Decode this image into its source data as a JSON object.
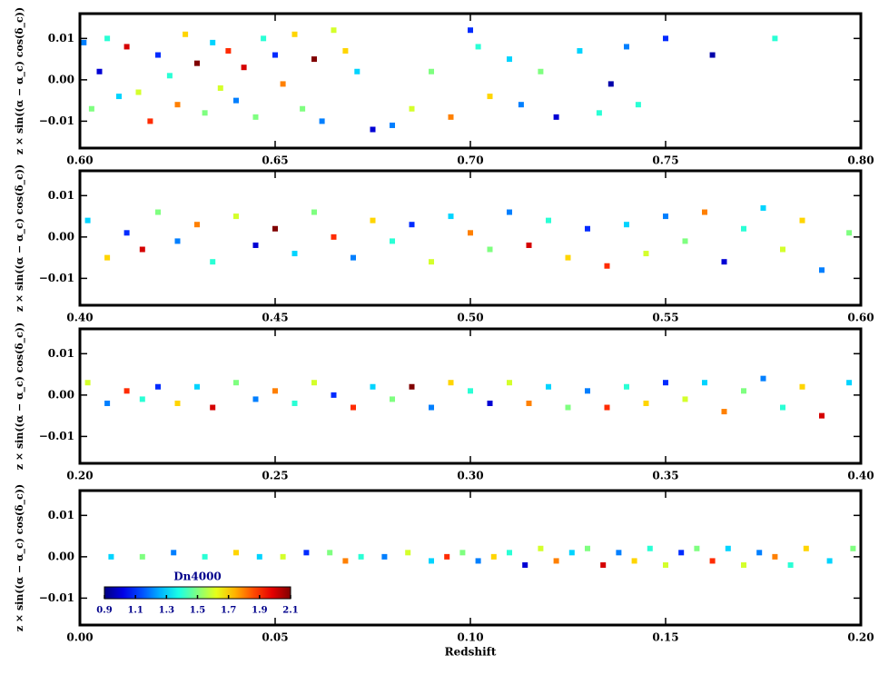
{
  "chart_data": [
    {
      "type": "scatter",
      "ylabel": "z × sin((α − α_c) cos(δ_c))",
      "colormap": "jet",
      "xlim": [
        0.6,
        0.8
      ],
      "xticks": [
        {
          "value": 0.6,
          "label": "0.60"
        },
        {
          "value": 0.65,
          "label": "0.65"
        },
        {
          "value": 0.7,
          "label": "0.70"
        },
        {
          "value": 0.75,
          "label": "0.75"
        },
        {
          "value": 0.8,
          "label": "0.80"
        }
      ],
      "ylim": [
        -0.0165,
        0.016
      ],
      "yticks": [
        {
          "value": -0.01,
          "label": "−0.01"
        },
        {
          "value": 0,
          "label": "0.00"
        },
        {
          "value": 0.01,
          "label": "0.01"
        }
      ],
      "series": [
        {
          "x": [
            0.601,
            0.603,
            0.605,
            0.607,
            0.61,
            0.612,
            0.615,
            0.618,
            0.62,
            0.623,
            0.625,
            0.627,
            0.63,
            0.632,
            0.634,
            0.636,
            0.638,
            0.64,
            0.642,
            0.645,
            0.647,
            0.65,
            0.652,
            0.655,
            0.657,
            0.66,
            0.662,
            0.665,
            0.668,
            0.671,
            0.675,
            0.68,
            0.685,
            0.69,
            0.695,
            0.7,
            0.702,
            0.705,
            0.71,
            0.713,
            0.718,
            0.722,
            0.728,
            0.733,
            0.736,
            0.74,
            0.743,
            0.75,
            0.762,
            0.778
          ],
          "y": [
            0.009,
            -0.007,
            0.002,
            0.01,
            -0.004,
            0.008,
            -0.003,
            -0.01,
            0.006,
            0.001,
            -0.006,
            0.011,
            0.004,
            -0.008,
            0.009,
            -0.002,
            0.007,
            -0.005,
            0.003,
            -0.009,
            0.01,
            0.006,
            -0.001,
            0.011,
            -0.007,
            0.005,
            -0.01,
            0.012,
            0.007,
            0.002,
            -0.012,
            -0.011,
            -0.007,
            0.002,
            -0.009,
            0.012,
            0.008,
            -0.004,
            0.005,
            -0.006,
            0.002,
            -0.009,
            0.007,
            -0.008,
            -0.001,
            0.008,
            -0.006,
            0.01,
            0.006,
            0.01
          ],
          "c": [
            1.2,
            1.5,
            1.0,
            1.4,
            1.3,
            2.0,
            1.6,
            1.9,
            1.1,
            1.4,
            1.8,
            1.7,
            2.1,
            1.5,
            1.3,
            1.6,
            1.9,
            1.2,
            2.0,
            1.5,
            1.4,
            1.1,
            1.8,
            1.7,
            1.5,
            2.1,
            1.2,
            1.6,
            1.7,
            1.3,
            1.0,
            1.2,
            1.6,
            1.5,
            1.8,
            1.1,
            1.4,
            1.7,
            1.3,
            1.2,
            1.5,
            1.0,
            1.3,
            1.4,
            0.95,
            1.2,
            1.4,
            1.1,
            0.95,
            1.4
          ]
        }
      ]
    },
    {
      "type": "scatter",
      "ylabel": "z × sin((α − α_c) cos(δ_c))",
      "colormap": "jet",
      "xlim": [
        0.4,
        0.6
      ],
      "xticks": [
        {
          "value": 0.4,
          "label": "0.40"
        },
        {
          "value": 0.45,
          "label": "0.45"
        },
        {
          "value": 0.5,
          "label": "0.50"
        },
        {
          "value": 0.55,
          "label": "0.55"
        },
        {
          "value": 0.6,
          "label": "0.60"
        }
      ],
      "ylim": [
        -0.0165,
        0.016
      ],
      "yticks": [
        {
          "value": -0.01,
          "label": "−0.01"
        },
        {
          "value": 0,
          "label": "0.00"
        },
        {
          "value": 0.01,
          "label": "0.01"
        }
      ],
      "series": [
        {
          "x": [
            0.402,
            0.407,
            0.412,
            0.416,
            0.42,
            0.425,
            0.43,
            0.434,
            0.44,
            0.445,
            0.45,
            0.455,
            0.46,
            0.465,
            0.47,
            0.475,
            0.48,
            0.485,
            0.49,
            0.495,
            0.5,
            0.505,
            0.51,
            0.515,
            0.52,
            0.525,
            0.53,
            0.535,
            0.54,
            0.545,
            0.55,
            0.555,
            0.56,
            0.565,
            0.57,
            0.575,
            0.58,
            0.585,
            0.59,
            0.597
          ],
          "y": [
            0.004,
            -0.005,
            0.001,
            -0.003,
            0.006,
            -0.001,
            0.003,
            -0.006,
            0.005,
            -0.002,
            0.002,
            -0.004,
            0.006,
            0.0,
            -0.005,
            0.004,
            -0.001,
            0.003,
            -0.006,
            0.005,
            0.001,
            -0.003,
            0.006,
            -0.002,
            0.004,
            -0.005,
            0.002,
            -0.007,
            0.003,
            -0.004,
            0.005,
            -0.001,
            0.006,
            -0.006,
            0.002,
            0.007,
            -0.003,
            0.004,
            -0.008,
            0.001
          ],
          "c": [
            1.3,
            1.7,
            1.1,
            2.0,
            1.5,
            1.2,
            1.8,
            1.4,
            1.6,
            1.0,
            2.1,
            1.3,
            1.5,
            1.9,
            1.2,
            1.7,
            1.4,
            1.1,
            1.6,
            1.3,
            1.8,
            1.5,
            1.2,
            2.0,
            1.4,
            1.7,
            1.1,
            1.9,
            1.3,
            1.6,
            1.2,
            1.5,
            1.8,
            1.0,
            1.4,
            1.3,
            1.6,
            1.7,
            1.2,
            1.5
          ]
        }
      ]
    },
    {
      "type": "scatter",
      "ylabel": "z × sin((α − α_c) cos(δ_c))",
      "colormap": "jet",
      "xlim": [
        0.2,
        0.4
      ],
      "xticks": [
        {
          "value": 0.2,
          "label": "0.20"
        },
        {
          "value": 0.25,
          "label": "0.25"
        },
        {
          "value": 0.3,
          "label": "0.30"
        },
        {
          "value": 0.35,
          "label": "0.35"
        },
        {
          "value": 0.4,
          "label": "0.40"
        }
      ],
      "ylim": [
        -0.0165,
        0.016
      ],
      "yticks": [
        {
          "value": -0.01,
          "label": "−0.01"
        },
        {
          "value": 0,
          "label": "0.00"
        },
        {
          "value": 0.01,
          "label": "0.01"
        }
      ],
      "series": [
        {
          "x": [
            0.202,
            0.207,
            0.212,
            0.216,
            0.22,
            0.225,
            0.23,
            0.234,
            0.24,
            0.245,
            0.25,
            0.255,
            0.26,
            0.265,
            0.27,
            0.275,
            0.28,
            0.285,
            0.29,
            0.295,
            0.3,
            0.305,
            0.31,
            0.315,
            0.32,
            0.325,
            0.33,
            0.335,
            0.34,
            0.345,
            0.35,
            0.355,
            0.36,
            0.365,
            0.37,
            0.375,
            0.38,
            0.385,
            0.39,
            0.397
          ],
          "y": [
            0.003,
            -0.002,
            0.001,
            -0.001,
            0.002,
            -0.002,
            0.002,
            -0.003,
            0.003,
            -0.001,
            0.001,
            -0.002,
            0.003,
            0.0,
            -0.003,
            0.002,
            -0.001,
            0.002,
            -0.003,
            0.003,
            0.001,
            -0.002,
            0.003,
            -0.002,
            0.002,
            -0.003,
            0.001,
            -0.003,
            0.002,
            -0.002,
            0.003,
            -0.001,
            0.003,
            -0.004,
            0.001,
            0.004,
            -0.003,
            0.002,
            -0.005,
            0.003
          ],
          "c": [
            1.6,
            1.2,
            1.9,
            1.4,
            1.1,
            1.7,
            1.3,
            2.0,
            1.5,
            1.2,
            1.8,
            1.4,
            1.6,
            1.1,
            1.9,
            1.3,
            1.5,
            2.1,
            1.2,
            1.7,
            1.4,
            1.0,
            1.6,
            1.8,
            1.3,
            1.5,
            1.2,
            1.9,
            1.4,
            1.7,
            1.1,
            1.6,
            1.3,
            1.8,
            1.5,
            1.2,
            1.4,
            1.7,
            2.0,
            1.3
          ]
        }
      ]
    },
    {
      "type": "scatter",
      "ylabel": "z × sin((α − α_c) cos(δ_c))",
      "xlabel": "Redshift",
      "colormap": "jet",
      "xlim": [
        0.0,
        0.2
      ],
      "xticks": [
        {
          "value": 0.0,
          "label": "0.00"
        },
        {
          "value": 0.05,
          "label": "0.05"
        },
        {
          "value": 0.1,
          "label": "0.10"
        },
        {
          "value": 0.15,
          "label": "0.15"
        },
        {
          "value": 0.2,
          "label": "0.20"
        }
      ],
      "ylim": [
        -0.0165,
        0.016
      ],
      "yticks": [
        {
          "value": -0.01,
          "label": "−0.01"
        },
        {
          "value": 0,
          "label": "0.00"
        },
        {
          "value": 0.01,
          "label": "0.01"
        }
      ],
      "colorbar": {
        "label": "Dn4000",
        "clim": [
          0.9,
          2.1
        ],
        "ticks": [
          0.9,
          1.1,
          1.3,
          1.5,
          1.7,
          1.9,
          2.1
        ]
      },
      "series": [
        {
          "x": [
            0.008,
            0.016,
            0.024,
            0.032,
            0.04,
            0.046,
            0.052,
            0.058,
            0.064,
            0.068,
            0.072,
            0.078,
            0.084,
            0.09,
            0.094,
            0.098,
            0.102,
            0.106,
            0.11,
            0.114,
            0.118,
            0.122,
            0.126,
            0.13,
            0.134,
            0.138,
            0.142,
            0.146,
            0.15,
            0.154,
            0.158,
            0.162,
            0.166,
            0.17,
            0.174,
            0.178,
            0.182,
            0.186,
            0.192,
            0.198
          ],
          "y": [
            0.0,
            0.0,
            0.001,
            0.0,
            0.001,
            0.0,
            0.0,
            0.001,
            0.001,
            -0.001,
            0.0,
            0.0,
            0.001,
            -0.001,
            0.0,
            0.001,
            -0.001,
            0.0,
            0.001,
            -0.002,
            0.002,
            -0.001,
            0.001,
            0.002,
            -0.002,
            0.001,
            -0.001,
            0.002,
            -0.002,
            0.001,
            0.002,
            -0.001,
            0.002,
            -0.002,
            0.001,
            0.0,
            -0.002,
            0.002,
            -0.001,
            0.002
          ],
          "c": [
            1.3,
            1.5,
            1.2,
            1.4,
            1.7,
            1.3,
            1.6,
            1.1,
            1.5,
            1.8,
            1.4,
            1.2,
            1.6,
            1.3,
            1.9,
            1.5,
            1.2,
            1.7,
            1.4,
            1.0,
            1.6,
            1.8,
            1.3,
            1.5,
            2.0,
            1.2,
            1.7,
            1.4,
            1.6,
            1.1,
            1.5,
            1.9,
            1.3,
            1.6,
            1.2,
            1.8,
            1.4,
            1.7,
            1.3,
            1.5
          ]
        }
      ]
    }
  ]
}
